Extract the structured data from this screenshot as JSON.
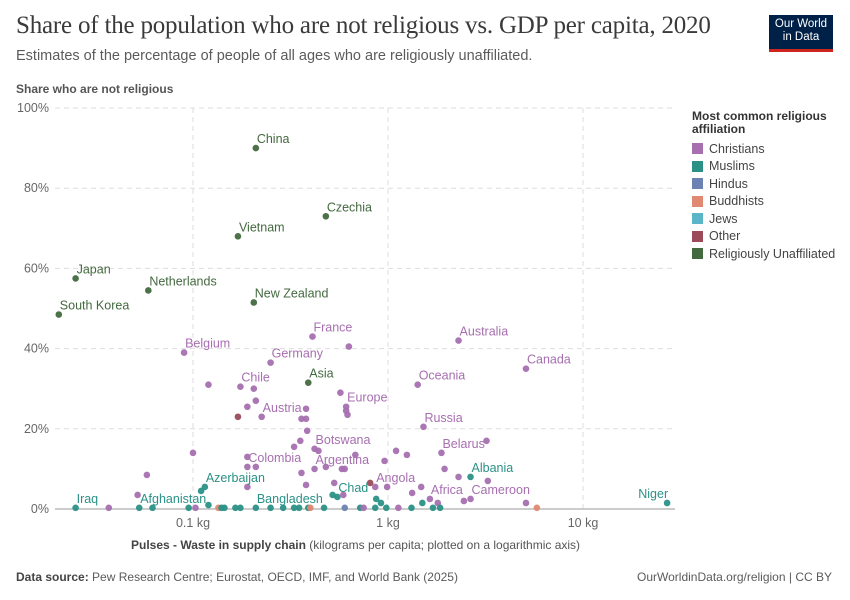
{
  "header": {
    "title": "Share of the population who are not religious vs. GDP per capita, 2020",
    "subtitle": "Estimates of the percentage of people of all ages who are religiously unaffiliated.",
    "logo_line1": "Our World",
    "logo_line2": "in Data"
  },
  "footer": {
    "source_label": "Data source:",
    "source_text": "Pew Research Centre; Eurostat, OECD, IMF, and World Bank (2025)",
    "right_text": "OurWorldinData.org/religion | CC BY"
  },
  "colors": {
    "Christians": "#a76fb0",
    "Muslims": "#2b9187",
    "Hindus": "#6b82b2",
    "Buddhists": "#e08872",
    "Jews": "#5ab5c8",
    "Other": "#9b4a5a",
    "Religiously Unaffiliated": "#43693f"
  },
  "chart_data": {
    "type": "scatter",
    "title": "Share of the population who are not religious vs. GDP per capita, 2020",
    "subtitle": "Estimates of the percentage of people of all ages who are religiously unaffiliated.",
    "ylabel": "Share who are not religious",
    "xlabel_bold": "Pulses - Waste in supply chain",
    "xlabel_rest": " (kilograms per capita; plotted on a logarithmic axis)",
    "x_scale": "log",
    "xlim": [
      0.022,
      30
    ],
    "ylim": [
      0,
      100
    ],
    "x_ticks": [
      {
        "value": 0.1,
        "label": "0.1 kg"
      },
      {
        "value": 1,
        "label": "1 kg"
      },
      {
        "value": 10,
        "label": "10 kg"
      }
    ],
    "y_ticks": [
      {
        "value": 0,
        "label": "0%"
      },
      {
        "value": 20,
        "label": "20%"
      },
      {
        "value": 40,
        "label": "40%"
      },
      {
        "value": 60,
        "label": "60%"
      },
      {
        "value": 80,
        "label": "80%"
      },
      {
        "value": 100,
        "label": "100%"
      }
    ],
    "grid": true,
    "legend_title": "Most common religious affiliation",
    "legend_position": "right",
    "legend": [
      "Christians",
      "Muslims",
      "Hindus",
      "Buddhists",
      "Jews",
      "Other",
      "Religiously Unaffiliated"
    ],
    "points": [
      {
        "label": "China",
        "x": 0.21,
        "y": 90,
        "group": "Religiously Unaffiliated"
      },
      {
        "label": "Czechia",
        "x": 0.48,
        "y": 73,
        "group": "Religiously Unaffiliated"
      },
      {
        "label": "Vietnam",
        "x": 0.17,
        "y": 68,
        "group": "Religiously Unaffiliated"
      },
      {
        "label": "Japan",
        "x": 0.025,
        "y": 57.5,
        "group": "Religiously Unaffiliated"
      },
      {
        "label": "Netherlands",
        "x": 0.059,
        "y": 54.5,
        "group": "Religiously Unaffiliated"
      },
      {
        "label": "New Zealand",
        "x": 0.205,
        "y": 51.5,
        "group": "Religiously Unaffiliated"
      },
      {
        "label": "South Korea",
        "x": 0.0205,
        "y": 48.5,
        "group": "Religiously Unaffiliated"
      },
      {
        "label": "Asia",
        "x": 0.39,
        "y": 31.5,
        "group": "Religiously Unaffiliated"
      },
      {
        "label": "France",
        "x": 0.41,
        "y": 43,
        "group": "Christians"
      },
      {
        "label": "",
        "x": 0.63,
        "y": 40.5,
        "group": "Christians"
      },
      {
        "label": "Australia",
        "x": 2.3,
        "y": 42,
        "group": "Christians"
      },
      {
        "label": "Belgium",
        "x": 0.09,
        "y": 39,
        "group": "Christians"
      },
      {
        "label": "Germany",
        "x": 0.25,
        "y": 36.5,
        "group": "Christians"
      },
      {
        "label": "Canada",
        "x": 5.1,
        "y": 35,
        "group": "Christians"
      },
      {
        "label": "Oceania",
        "x": 1.42,
        "y": 31,
        "group": "Christians"
      },
      {
        "label": "",
        "x": 0.12,
        "y": 31,
        "group": "Christians"
      },
      {
        "label": "Chile",
        "x": 0.175,
        "y": 30.5,
        "group": "Christians"
      },
      {
        "label": "",
        "x": 0.205,
        "y": 30,
        "group": "Christians"
      },
      {
        "label": "",
        "x": 0.57,
        "y": 29,
        "group": "Christians"
      },
      {
        "label": "Europe",
        "x": 0.61,
        "y": 25.5,
        "group": "Christians"
      },
      {
        "label": "",
        "x": 0.61,
        "y": 24.5,
        "group": "Christians"
      },
      {
        "label": "",
        "x": 0.62,
        "y": 23.5,
        "group": "Christians"
      },
      {
        "label": "",
        "x": 0.21,
        "y": 27,
        "group": "Christians"
      },
      {
        "label": "",
        "x": 0.19,
        "y": 25.5,
        "group": "Christians"
      },
      {
        "label": "Austria",
        "x": 0.225,
        "y": 23,
        "group": "Christians"
      },
      {
        "label": "",
        "x": 0.36,
        "y": 22.5,
        "group": "Christians"
      },
      {
        "label": "",
        "x": 0.38,
        "y": 22.5,
        "group": "Christians"
      },
      {
        "label": "",
        "x": 0.38,
        "y": 25,
        "group": "Christians"
      },
      {
        "label": "",
        "x": 0.17,
        "y": 23,
        "group": "Other"
      },
      {
        "label": "Russia",
        "x": 1.52,
        "y": 20.5,
        "group": "Christians"
      },
      {
        "label": "",
        "x": 0.385,
        "y": 19.5,
        "group": "Christians"
      },
      {
        "label": "Botswana",
        "x": 0.42,
        "y": 15,
        "group": "Christians"
      },
      {
        "label": "",
        "x": 0.355,
        "y": 17,
        "group": "Christians"
      },
      {
        "label": "",
        "x": 0.33,
        "y": 15.5,
        "group": "Christians"
      },
      {
        "label": "",
        "x": 0.44,
        "y": 14.5,
        "group": "Christians"
      },
      {
        "label": "",
        "x": 0.68,
        "y": 13.5,
        "group": "Christians"
      },
      {
        "label": "Belarus",
        "x": 1.88,
        "y": 14,
        "group": "Christians"
      },
      {
        "label": "",
        "x": 3.2,
        "y": 17,
        "group": "Christians"
      },
      {
        "label": "",
        "x": 1.1,
        "y": 14.5,
        "group": "Christians"
      },
      {
        "label": "",
        "x": 1.25,
        "y": 13.5,
        "group": "Christians"
      },
      {
        "label": "",
        "x": 0.1,
        "y": 14,
        "group": "Christians"
      },
      {
        "label": "Colombia",
        "x": 0.19,
        "y": 10.5,
        "group": "Christians"
      },
      {
        "label": "",
        "x": 0.21,
        "y": 10.5,
        "group": "Christians"
      },
      {
        "label": "",
        "x": 0.19,
        "y": 13,
        "group": "Christians"
      },
      {
        "label": "Argentina",
        "x": 0.42,
        "y": 10,
        "group": "Christians"
      },
      {
        "label": "",
        "x": 0.36,
        "y": 9,
        "group": "Christians"
      },
      {
        "label": "",
        "x": 0.48,
        "y": 10.5,
        "group": "Christians"
      },
      {
        "label": "",
        "x": 0.58,
        "y": 10,
        "group": "Christians"
      },
      {
        "label": "",
        "x": 0.6,
        "y": 10,
        "group": "Christians"
      },
      {
        "label": "",
        "x": 0.96,
        "y": 12,
        "group": "Christians"
      },
      {
        "label": "",
        "x": 0.058,
        "y": 8.5,
        "group": "Christians"
      },
      {
        "label": "",
        "x": 1.95,
        "y": 10,
        "group": "Christians"
      },
      {
        "label": "",
        "x": 2.3,
        "y": 8,
        "group": "Christians"
      },
      {
        "label": "",
        "x": 3.25,
        "y": 7,
        "group": "Christians"
      },
      {
        "label": "Angola",
        "x": 0.86,
        "y": 5.5,
        "group": "Christians"
      },
      {
        "label": "",
        "x": 0.81,
        "y": 6.5,
        "group": "Other"
      },
      {
        "label": "",
        "x": 0.99,
        "y": 5.5,
        "group": "Christians"
      },
      {
        "label": "",
        "x": 0.38,
        "y": 6,
        "group": "Christians"
      },
      {
        "label": "",
        "x": 0.53,
        "y": 6.5,
        "group": "Christians"
      },
      {
        "label": "",
        "x": 0.19,
        "y": 5.5,
        "group": "Christians"
      },
      {
        "label": "Azerbaijan",
        "x": 0.115,
        "y": 5.5,
        "group": "Muslims"
      },
      {
        "label": "",
        "x": 0.11,
        "y": 4.5,
        "group": "Muslims"
      },
      {
        "label": "Albania",
        "x": 2.65,
        "y": 8,
        "group": "Muslims"
      },
      {
        "label": "Chad",
        "x": 0.55,
        "y": 3,
        "group": "Muslims"
      },
      {
        "label": "",
        "x": 0.52,
        "y": 3.5,
        "group": "Muslims"
      },
      {
        "label": "",
        "x": 0.59,
        "y": 3.5,
        "group": "Christians"
      },
      {
        "label": "Africa",
        "x": 1.64,
        "y": 2.5,
        "group": "Christians"
      },
      {
        "label": "",
        "x": 1.33,
        "y": 4,
        "group": "Christians"
      },
      {
        "label": "",
        "x": 1.48,
        "y": 5.5,
        "group": "Christians"
      },
      {
        "label": "",
        "x": 1.5,
        "y": 1.5,
        "group": "Muslims"
      },
      {
        "label": "Cameroon",
        "x": 2.65,
        "y": 2.5,
        "group": "Christians"
      },
      {
        "label": "",
        "x": 2.45,
        "y": 2,
        "group": "Christians"
      },
      {
        "label": "",
        "x": 5.1,
        "y": 1.5,
        "group": "Christians"
      },
      {
        "label": "",
        "x": 1.8,
        "y": 1.5,
        "group": "Christians"
      },
      {
        "label": "",
        "x": 0.052,
        "y": 3.5,
        "group": "Christians"
      },
      {
        "label": "Niger",
        "x": 27,
        "y": 1.5,
        "group": "Muslims"
      },
      {
        "label": "Iraq",
        "x": 0.025,
        "y": 0.3,
        "group": "Muslims"
      },
      {
        "label": "",
        "x": 0.037,
        "y": 0.3,
        "group": "Christians"
      },
      {
        "label": "Afghanistan",
        "x": 0.053,
        "y": 0.3,
        "group": "Muslims"
      },
      {
        "label": "",
        "x": 0.062,
        "y": 0.3,
        "group": "Muslims"
      },
      {
        "label": "",
        "x": 0.095,
        "y": 0.3,
        "group": "Muslims"
      },
      {
        "label": "",
        "x": 0.103,
        "y": 0.3,
        "group": "Christians"
      },
      {
        "label": "",
        "x": 0.12,
        "y": 1,
        "group": "Muslims"
      },
      {
        "label": "",
        "x": 0.135,
        "y": 0.3,
        "group": "Buddhists"
      },
      {
        "label": "",
        "x": 0.14,
        "y": 0.3,
        "group": "Muslims"
      },
      {
        "label": "",
        "x": 0.145,
        "y": 0.3,
        "group": "Muslims"
      },
      {
        "label": "",
        "x": 0.165,
        "y": 0.3,
        "group": "Muslims"
      },
      {
        "label": "",
        "x": 0.175,
        "y": 0.3,
        "group": "Muslims"
      },
      {
        "label": "Bangladesh",
        "x": 0.21,
        "y": 0.3,
        "group": "Muslims"
      },
      {
        "label": "",
        "x": 0.25,
        "y": 0.3,
        "group": "Muslims"
      },
      {
        "label": "",
        "x": 0.29,
        "y": 0.3,
        "group": "Muslims"
      },
      {
        "label": "",
        "x": 0.33,
        "y": 0.3,
        "group": "Muslims"
      },
      {
        "label": "",
        "x": 0.35,
        "y": 0.3,
        "group": "Muslims"
      },
      {
        "label": "",
        "x": 0.39,
        "y": 0.3,
        "group": "Muslims"
      },
      {
        "label": "",
        "x": 0.4,
        "y": 0.3,
        "group": "Buddhists"
      },
      {
        "label": "",
        "x": 0.47,
        "y": 0.3,
        "group": "Muslims"
      },
      {
        "label": "",
        "x": 0.6,
        "y": 0.3,
        "group": "Hindus"
      },
      {
        "label": "",
        "x": 0.72,
        "y": 0.3,
        "group": "Muslims"
      },
      {
        "label": "",
        "x": 0.75,
        "y": 0.3,
        "group": "Christians"
      },
      {
        "label": "",
        "x": 0.86,
        "y": 0.3,
        "group": "Muslims"
      },
      {
        "label": "",
        "x": 0.87,
        "y": 2.5,
        "group": "Muslims"
      },
      {
        "label": "",
        "x": 0.92,
        "y": 1.5,
        "group": "Muslims"
      },
      {
        "label": "",
        "x": 0.98,
        "y": 0.3,
        "group": "Muslims"
      },
      {
        "label": "",
        "x": 1.13,
        "y": 0.3,
        "group": "Christians"
      },
      {
        "label": "",
        "x": 1.32,
        "y": 0.3,
        "group": "Muslims"
      },
      {
        "label": "",
        "x": 1.7,
        "y": 0.3,
        "group": "Muslims"
      },
      {
        "label": "",
        "x": 1.85,
        "y": 0.3,
        "group": "Muslims"
      },
      {
        "label": "",
        "x": 5.8,
        "y": 0.3,
        "group": "Buddhists"
      }
    ]
  }
}
